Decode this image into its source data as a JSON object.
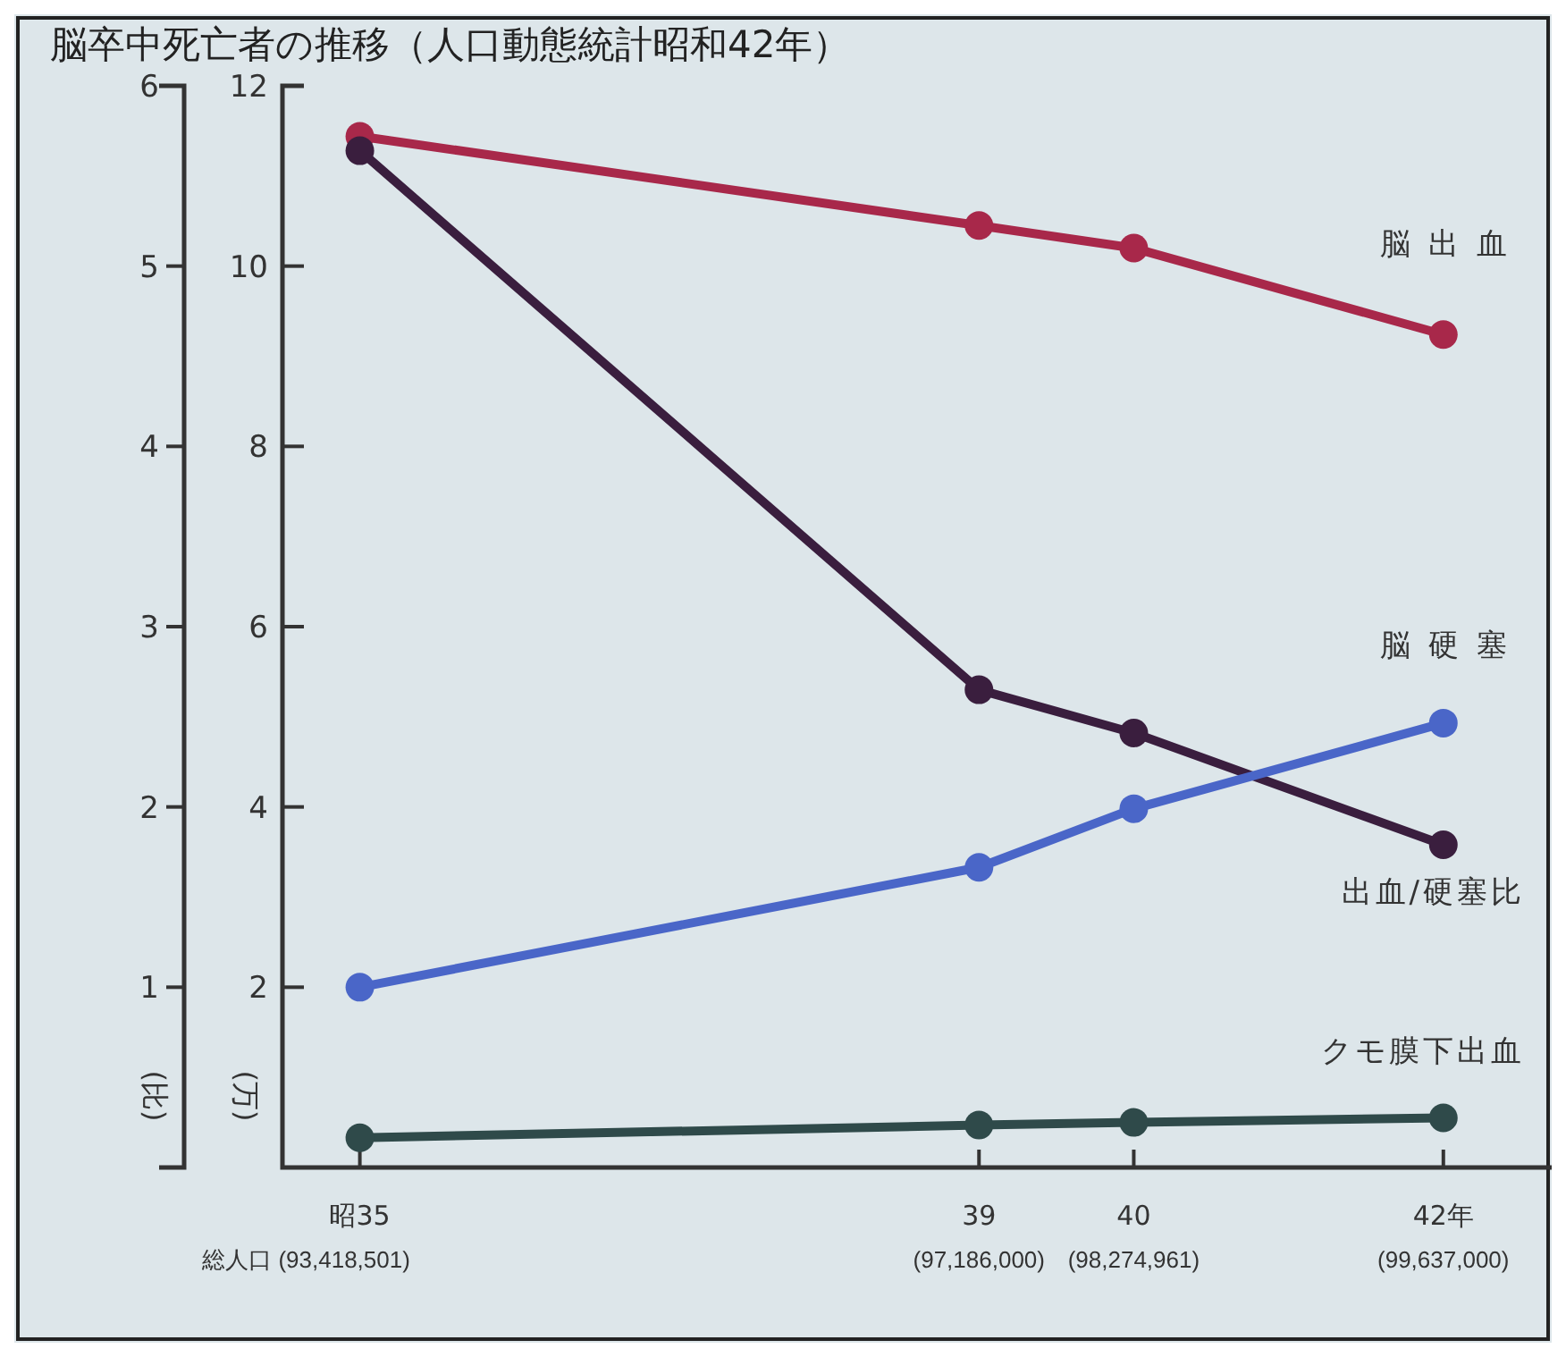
{
  "chart_data": {
    "type": "line",
    "title": "脳卒中死亡者の推移（人口動態統計昭和42年）",
    "ylabel": "(万)",
    "y2label": "(比)",
    "x": [
      35,
      39,
      40,
      42
    ],
    "xlim": [
      34.5,
      42.7
    ],
    "xticks": [
      {
        "value": 35,
        "label": "昭35"
      },
      39,
      40,
      {
        "value": 42,
        "label": "42年"
      }
    ],
    "annotations": [
      "総人口 (93,418,501)",
      "(97,186,000)",
      "(98,274,961)",
      "(99,637,000)"
    ],
    "ylim": [
      0,
      12
    ],
    "yticks": [
      {
        "value": 2,
        "label": "2"
      },
      {
        "value": 4,
        "label": "4"
      },
      {
        "value": 6,
        "label": "6"
      },
      {
        "value": 8,
        "label": "8"
      },
      {
        "value": 10,
        "label": "10"
      },
      {
        "value": 12,
        "label": "12"
      }
    ],
    "y2lim": [
      0,
      6
    ],
    "y2ticks": [
      1,
      2,
      3,
      4,
      5,
      6
    ],
    "marker": "circle",
    "legend": false,
    "grid": false,
    "series": [
      {
        "name": "脳出血",
        "color": "#a8284a",
        "values": [
          11.44,
          10.45,
          10.2,
          9.24
        ]
      },
      {
        "name": "出血/硬塞比",
        "color": "#3a1e3e",
        "axis": "y2",
        "values": [
          5.64,
          2.65,
          2.41,
          1.79
        ]
      },
      {
        "name": "脳硬塞",
        "color": "#4a66c8",
        "values": [
          2.0,
          3.33,
          3.98,
          4.93
        ]
      },
      {
        "name": "クモ膜下出血",
        "color": "#2f4a4a",
        "values": [
          0.33,
          0.47,
          0.5,
          0.55
        ]
      }
    ]
  }
}
